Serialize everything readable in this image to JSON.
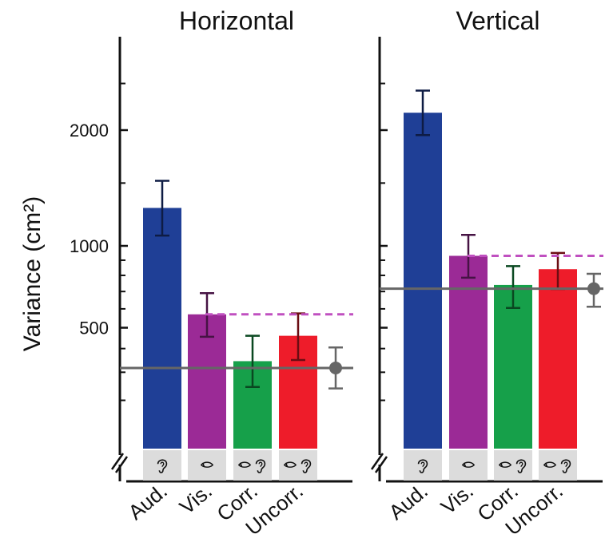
{
  "chart_data": {
    "type": "bar",
    "ylabel": "Variance (cm²)",
    "y_scale": "sqrt",
    "yticks": [
      {
        "value": 500,
        "label": "500"
      },
      {
        "value": 1000,
        "label": "1000"
      },
      {
        "value": 2000,
        "label": "2000"
      }
    ],
    "minor_yticks": [
      200,
      300,
      400,
      600,
      700,
      800,
      900,
      1500,
      2500
    ],
    "categories": [
      "Aud.",
      "Vis.",
      "Corr.",
      "Uncorr."
    ],
    "category_icons": [
      "ear-icon",
      "eye-icon",
      "eye-ear-icon",
      "eye-ear-icon"
    ],
    "colors": {
      "Aud.": "#1f3f96",
      "Vis.": "#9b2a96",
      "Corr.": "#16a04a",
      "Uncorr.": "#ee1c2a",
      "prediction": "#666666",
      "visual_reference": "#c050c0",
      "icon_box": "#dcdcdc"
    },
    "panels": [
      {
        "title": "Horizontal",
        "bars": [
          {
            "category": "Aud.",
            "value": 1290,
            "err_low": 1075,
            "err_high": 1520
          },
          {
            "category": "Vis.",
            "value": 570,
            "err_low": 455,
            "err_high": 690
          },
          {
            "category": "Corr.",
            "value": 345,
            "err_low": 245,
            "err_high": 460
          },
          {
            "category": "Uncorr.",
            "value": 460,
            "err_low": 350,
            "err_high": 575
          }
        ],
        "visual_reference_line": 570,
        "prediction": {
          "value": 317,
          "err_low": 240,
          "err_high": 405
        }
      },
      {
        "title": "Vertical",
        "bars": [
          {
            "category": "Aud.",
            "value": 2180,
            "err_low": 1950,
            "err_high": 2420
          },
          {
            "category": "Vis.",
            "value": 930,
            "err_low": 785,
            "err_high": 1080
          },
          {
            "category": "Corr.",
            "value": 740,
            "err_low": 605,
            "err_high": 860
          },
          {
            "category": "Uncorr.",
            "value": 840,
            "err_low": 715,
            "err_high": 950
          }
        ],
        "visual_reference_line": 930,
        "prediction": {
          "value": 717,
          "err_low": 612,
          "err_high": 810
        }
      }
    ]
  }
}
